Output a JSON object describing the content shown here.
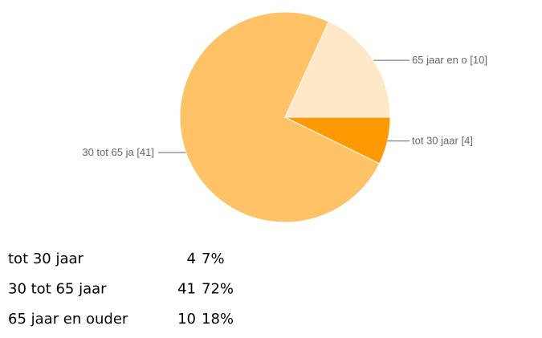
{
  "chart_data": {
    "type": "pie",
    "categories": [
      "tot 30 jaar",
      "30 tot 65 ja",
      "65 jaar en o"
    ],
    "values": [
      4,
      41,
      10
    ],
    "value_labels": [
      "[4]",
      "[41]",
      "[10]"
    ],
    "colors": [
      "#ff9900",
      "#ffc266",
      "#ffe8c8"
    ]
  },
  "table": {
    "rows": [
      [
        "tot 30 jaar",
        4,
        "7%"
      ],
      [
        "30 tot 65 jaar",
        41,
        "72%"
      ],
      [
        "65 jaar en ouder",
        10,
        "18%"
      ]
    ]
  }
}
